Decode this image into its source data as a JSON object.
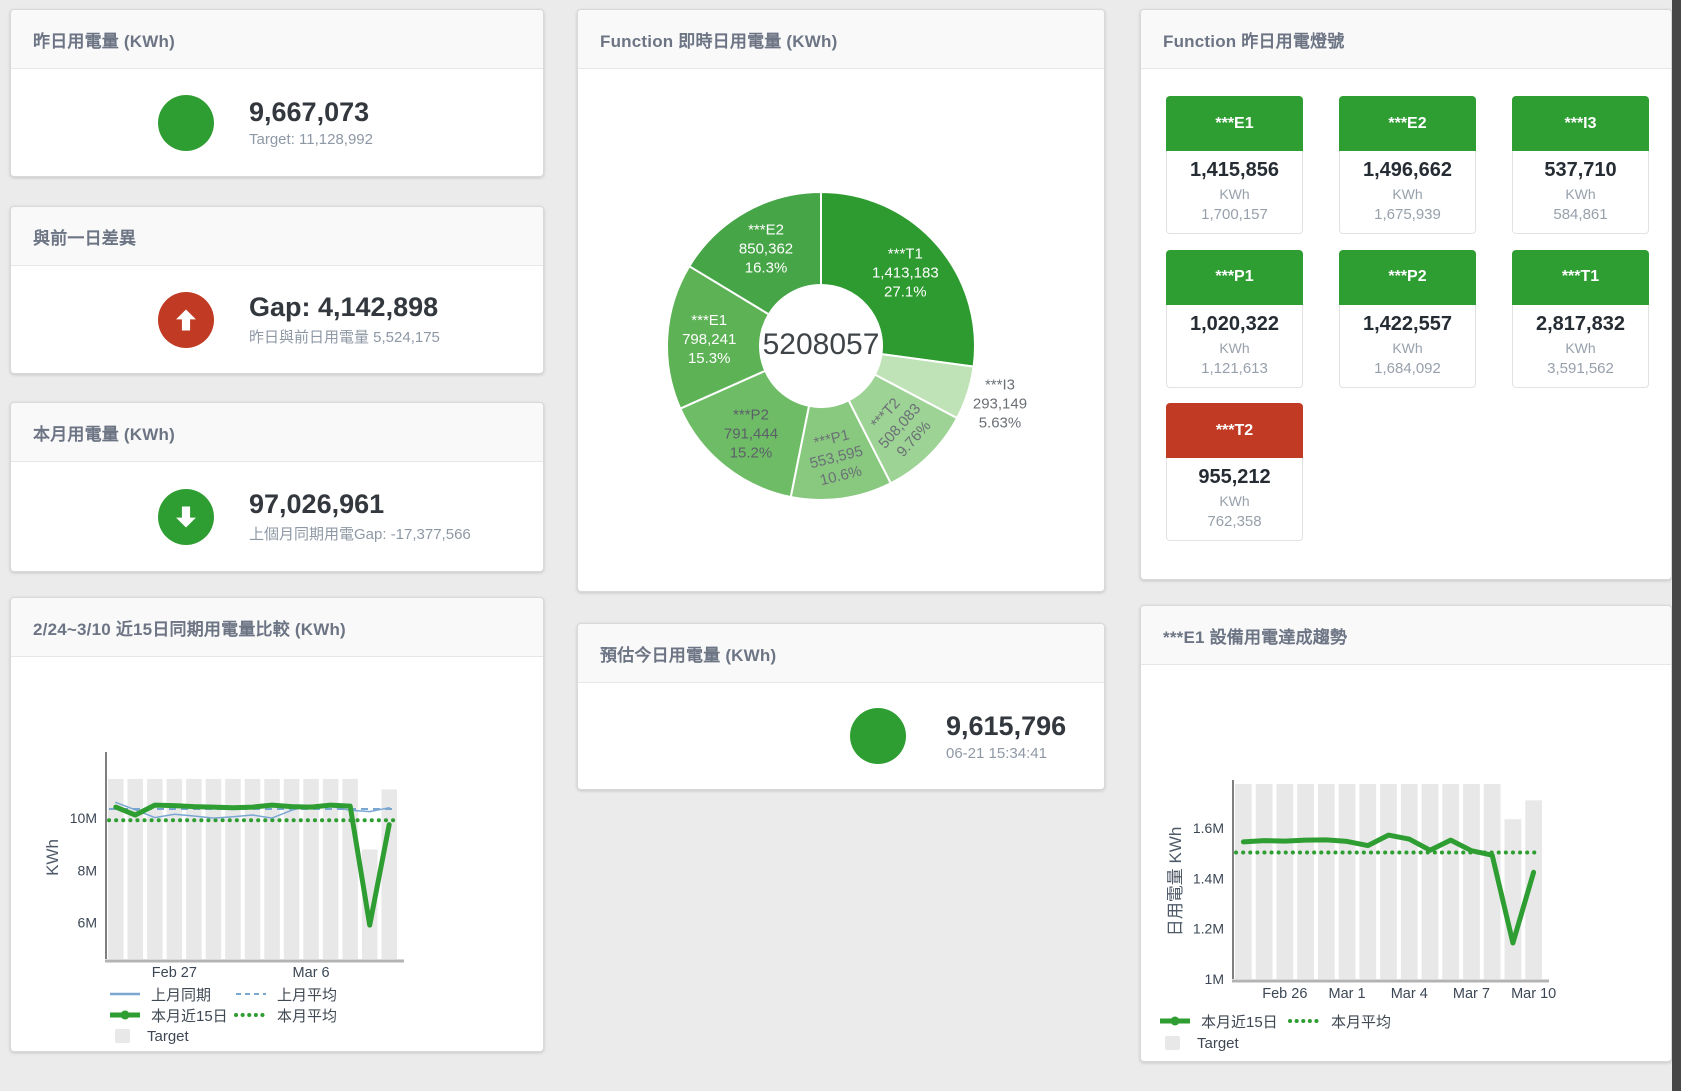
{
  "colors": {
    "green": "#2f9e32",
    "red": "#c13b24",
    "blue": "#7aa7d2",
    "bar": "#e8e8e8"
  },
  "cards": {
    "yesterday": {
      "title": "昨日用電量 (KWh)",
      "value": "9,667,073",
      "subtext": "Target: 11,128,992"
    },
    "gap_prev_day": {
      "title": "與前一日差異",
      "value": "Gap: 4,142,898",
      "subtext": "昨日與前日用電量 5,524,175"
    },
    "month": {
      "title": "本月用電量 (KWh)",
      "value": "97,026,961",
      "subtext": "上個月同期用電Gap: -17,377,566"
    },
    "estimate_today": {
      "title": "預估今日用電量 (KWh)",
      "value": "9,615,796",
      "subtext": "06-21 15:34:41"
    },
    "realtime_donut": {
      "title": "Function 即時日用電量 (KWh)"
    },
    "status_tiles": {
      "title": "Function 昨日用電燈號",
      "unit": "KWh",
      "tiles": [
        {
          "name": "***E1",
          "value": "1,415,856",
          "target": "1,700,157",
          "status": "green"
        },
        {
          "name": "***E2",
          "value": "1,496,662",
          "target": "1,675,939",
          "status": "green"
        },
        {
          "name": "***I3",
          "value": "537,710",
          "target": "584,861",
          "status": "green"
        },
        {
          "name": "***P1",
          "value": "1,020,322",
          "target": "1,121,613",
          "status": "green"
        },
        {
          "name": "***P2",
          "value": "1,422,557",
          "target": "1,684,092",
          "status": "green"
        },
        {
          "name": "***T1",
          "value": "2,817,832",
          "target": "3,591,562",
          "status": "green"
        },
        {
          "name": "***T2",
          "value": "955,212",
          "target": "762,358",
          "status": "red"
        }
      ]
    },
    "compare_chart": {
      "title": "2/24~3/10 近15日同期用電量比較 (KWh)"
    },
    "trend_chart": {
      "title": "***E1 設備用電達成趨勢"
    }
  },
  "chart_data": [
    {
      "type": "pie",
      "title": "Function 即時日用電量 (KWh)",
      "center_label": "5208057",
      "total": 5208057,
      "slices": [
        {
          "name": "***T1",
          "value": 1413183,
          "display": "1,413,183",
          "pct": "27.1%",
          "color": "#2e9b31",
          "label_color": "#ffffff",
          "label_rotate": 0
        },
        {
          "name": "***I3",
          "value": 293149,
          "display": "293,149",
          "pct": "5.63%",
          "color": "#bfe2b6",
          "label_color": "#6b7076",
          "label_rotate": 0,
          "label_outside": true
        },
        {
          "name": "***T2",
          "value": 508083,
          "display": "508,083",
          "pct": "9.76%",
          "color": "#9dd394",
          "label_color": "#6b7076",
          "label_rotate": -48
        },
        {
          "name": "***P1",
          "value": 553595,
          "display": "553,595",
          "pct": "10.6%",
          "color": "#88c97f",
          "label_color": "#6b7076",
          "label_rotate": -14
        },
        {
          "name": "***P2",
          "value": 791444,
          "display": "791,444",
          "pct": "15.2%",
          "color": "#6fbc67",
          "label_color": "#5b6168",
          "label_rotate": 0
        },
        {
          "name": "***E1",
          "value": 798241,
          "display": "798,241",
          "pct": "15.3%",
          "color": "#5cb254",
          "label_color": "#ffffff",
          "label_rotate": 0
        },
        {
          "name": "***E2",
          "value": 850362,
          "display": "850,362",
          "pct": "16.3%",
          "color": "#46a546",
          "label_color": "#ffffff",
          "label_rotate": 0
        }
      ]
    },
    {
      "type": "line+bar",
      "title": "2/24~3/10 近15日同期用電量比較 (KWh)",
      "ylabel": "KWh",
      "unit_note": "values in millions of KWh",
      "x": [
        "Feb 24",
        "Feb 25",
        "Feb 26",
        "Feb 27",
        "Feb 28",
        "Mar 1",
        "Mar 2",
        "Mar 3",
        "Mar 4",
        "Mar 5",
        "Mar 6",
        "Mar 7",
        "Mar 8",
        "Mar 9",
        "Mar 10"
      ],
      "xtick_idx": [
        3,
        10
      ],
      "ylim": [
        4.6,
        12.38
      ],
      "yticks": [
        {
          "v": 6,
          "label": "6M"
        },
        {
          "v": 8,
          "label": "8M"
        },
        {
          "v": 10,
          "label": "10M"
        }
      ],
      "legend_position": "bottom",
      "grid": false,
      "series": [
        {
          "name": "上月同期",
          "type": "line",
          "style": "solid",
          "width": 1.5,
          "color": "#7aa7d2",
          "values": [
            10.6,
            10.32,
            10.02,
            10.15,
            10.08,
            10.0,
            10.05,
            10.12,
            10.0,
            10.3,
            10.5,
            10.45,
            10.3,
            10.25,
            10.4
          ]
        },
        {
          "name": "上月平均",
          "type": "avg",
          "style": "dashed",
          "width": 2,
          "color": "#7aa7d2",
          "value": 10.35
        },
        {
          "name": "本月近15日",
          "type": "line",
          "style": "solid",
          "width": 5,
          "color": "#2f9e32",
          "values": [
            10.42,
            10.12,
            10.5,
            10.48,
            10.44,
            10.42,
            10.4,
            10.42,
            10.5,
            10.44,
            10.42,
            10.5,
            10.46,
            5.9,
            9.75
          ]
        },
        {
          "name": "本月平均",
          "type": "avg",
          "style": "dotted",
          "width": 4,
          "color": "#2f9e32",
          "value": 9.92
        },
        {
          "name": "Target",
          "type": "bar",
          "color": "#e8e8e8",
          "values": [
            11.5,
            11.5,
            11.5,
            11.5,
            11.5,
            11.5,
            11.5,
            11.5,
            11.5,
            11.5,
            11.5,
            11.5,
            11.5,
            8.8,
            11.1
          ]
        }
      ]
    },
    {
      "type": "line+bar",
      "title": "***E1 設備用電達成趨勢",
      "ylabel": "日用電量 KWh",
      "unit_note": "values in millions of KWh",
      "x": [
        "Feb 24",
        "Feb 25",
        "Feb 26",
        "Feb 27",
        "Feb 28",
        "Mar 1",
        "Mar 2",
        "Mar 3",
        "Mar 4",
        "Mar 5",
        "Mar 6",
        "Mar 7",
        "Mar 8",
        "Mar 9",
        "Mar 10"
      ],
      "xtick_idx": [
        2,
        5,
        8,
        11,
        14
      ],
      "ylim": [
        1.0,
        1.775
      ],
      "yticks": [
        {
          "v": 1,
          "label": "1M"
        },
        {
          "v": 1.2,
          "label": "1.2M"
        },
        {
          "v": 1.4,
          "label": "1.4M"
        },
        {
          "v": 1.6,
          "label": "1.6M"
        }
      ],
      "legend_position": "bottom",
      "grid": false,
      "series": [
        {
          "name": "本月近15日",
          "type": "line",
          "style": "solid",
          "width": 5,
          "color": "#2f9e32",
          "values": [
            1.545,
            1.55,
            1.548,
            1.552,
            1.553,
            1.547,
            1.53,
            1.572,
            1.556,
            1.512,
            1.552,
            1.51,
            1.492,
            1.143,
            1.424
          ]
        },
        {
          "name": "本月平均",
          "type": "avg",
          "style": "dotted",
          "width": 4,
          "color": "#2f9e32",
          "value": 1.503
        },
        {
          "name": "Target",
          "type": "bar",
          "color": "#e8e8e8",
          "values": [
            1.775,
            1.775,
            1.775,
            1.775,
            1.775,
            1.775,
            1.775,
            1.775,
            1.775,
            1.775,
            1.775,
            1.775,
            1.775,
            1.635,
            1.71
          ]
        }
      ]
    }
  ]
}
